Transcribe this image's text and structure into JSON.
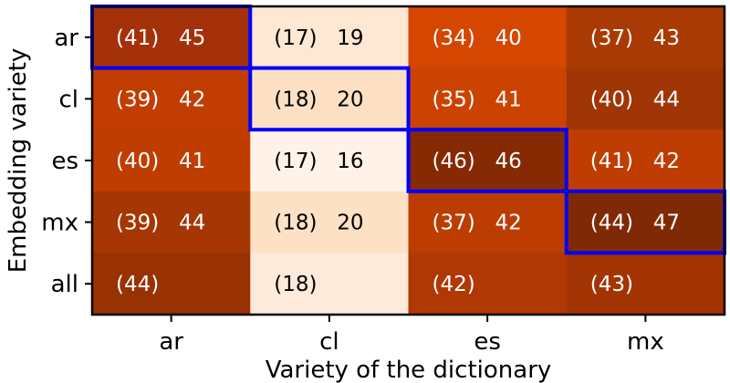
{
  "chart_data": {
    "type": "heatmap",
    "xlabel": "Variety of the dictionary",
    "ylabel": "Embedding variety",
    "x_categories": [
      "ar",
      "cl",
      "es",
      "mx"
    ],
    "y_categories": [
      "ar",
      "cl",
      "es",
      "mx",
      "all"
    ],
    "cells": [
      [
        {
          "paren": "(41)",
          "value": "45",
          "color": "#a5310a"
        },
        {
          "paren": "(17)",
          "value": "19",
          "color": "#fee7d3"
        },
        {
          "paren": "(34)",
          "value": "40",
          "color": "#d54601"
        },
        {
          "paren": "(37)",
          "value": "43",
          "color": "#aa3a03"
        }
      ],
      [
        {
          "paren": "(39)",
          "value": "42",
          "color": "#c23d02"
        },
        {
          "paren": "(18)",
          "value": "20",
          "color": "#fde0c3"
        },
        {
          "paren": "(35)",
          "value": "41",
          "color": "#cc4301"
        },
        {
          "paren": "(40)",
          "value": "44",
          "color": "#a03505"
        }
      ],
      [
        {
          "paren": "(40)",
          "value": "41",
          "color": "#c03d02"
        },
        {
          "paren": "(17)",
          "value": "16",
          "color": "#fff3e9"
        },
        {
          "paren": "(46)",
          "value": "46",
          "color": "#852a03"
        },
        {
          "paren": "(41)",
          "value": "42",
          "color": "#c03d02"
        }
      ],
      [
        {
          "paren": "(39)",
          "value": "44",
          "color": "#a63604"
        },
        {
          "paren": "(18)",
          "value": "20",
          "color": "#fde1c5"
        },
        {
          "paren": "(37)",
          "value": "42",
          "color": "#bc3c02"
        },
        {
          "paren": "(44)",
          "value": "47",
          "color": "#802905"
        }
      ],
      [
        {
          "paren": "(44)",
          "value": "",
          "color": "#983202"
        },
        {
          "paren": "(18)",
          "value": "",
          "color": "#feeadb"
        },
        {
          "paren": "(42)",
          "value": "",
          "color": "#b03804"
        },
        {
          "paren": "(43)",
          "value": "",
          "color": "#a23503"
        }
      ]
    ],
    "highlighted_cells": [
      [
        0,
        0
      ],
      [
        1,
        1
      ],
      [
        2,
        2
      ],
      [
        3,
        3
      ]
    ],
    "highlight_color": "#0000ff",
    "light_text_color": "#ffffff",
    "dark_text_color": "#000000",
    "grid": false
  }
}
